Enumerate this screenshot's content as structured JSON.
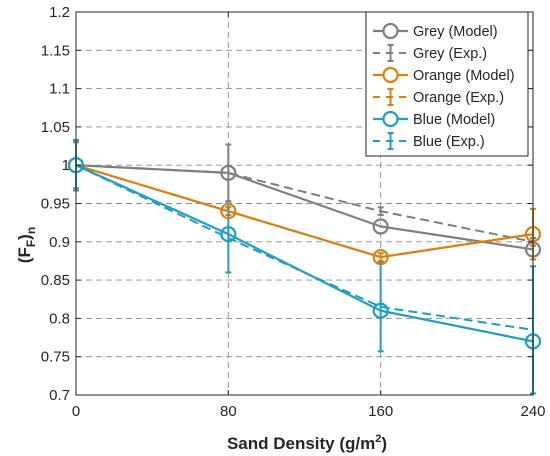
{
  "chart_data": {
    "type": "line",
    "xlabel": "Sand Density (g/m",
    "xlabel_sup": "2",
    "xlabel_close": ")",
    "ylabel": "(F",
    "ylabel_sub1": "F",
    "ylabel_mid": ")",
    "ylabel_sub2": "n",
    "x": [
      0,
      80,
      160,
      240
    ],
    "x_ticks": [
      "0",
      "80",
      "160",
      "240"
    ],
    "xlim": [
      0,
      240
    ],
    "ylim": [
      0.7,
      1.2
    ],
    "y_ticks": [
      "0.7",
      "0.75",
      "0.8",
      "0.85",
      "0.9",
      "0.95",
      "1",
      "1.05",
      "1.1",
      "1.15",
      "1.2"
    ],
    "grid": true,
    "legend_position": "top-right",
    "series": [
      {
        "name": "Grey (Model)",
        "kind": "model",
        "color": "#7f7f7f",
        "values": [
          1.0,
          0.99,
          0.92,
          0.89
        ]
      },
      {
        "name": "Grey (Exp.)",
        "kind": "exp",
        "color": "#7f7f7f",
        "values": [
          1.0,
          0.99,
          0.94,
          0.9
        ],
        "errors": [
          0.03,
          0.037,
          0.005,
          0.005
        ]
      },
      {
        "name": "Orange (Model)",
        "kind": "model",
        "color": "#d9800f",
        "values": [
          1.0,
          0.94,
          0.88,
          0.91
        ]
      },
      {
        "name": "Orange (Exp.)",
        "kind": "exp",
        "color": "#d9800f",
        "values": [
          1.0,
          0.94,
          0.88,
          0.91
        ],
        "errors": [
          0.03,
          0.005,
          0.005,
          0.033
        ]
      },
      {
        "name": "Blue (Model)",
        "kind": "model",
        "color": "#1f9dc9",
        "values": [
          1.0,
          0.91,
          0.81,
          0.77
        ]
      },
      {
        "name": "Blue (Exp.)",
        "kind": "exp",
        "color": "#1f9dc9",
        "values": [
          1.0,
          0.905,
          0.815,
          0.785
        ],
        "errors": [
          0.033,
          0.045,
          0.058,
          0.083
        ]
      }
    ]
  }
}
